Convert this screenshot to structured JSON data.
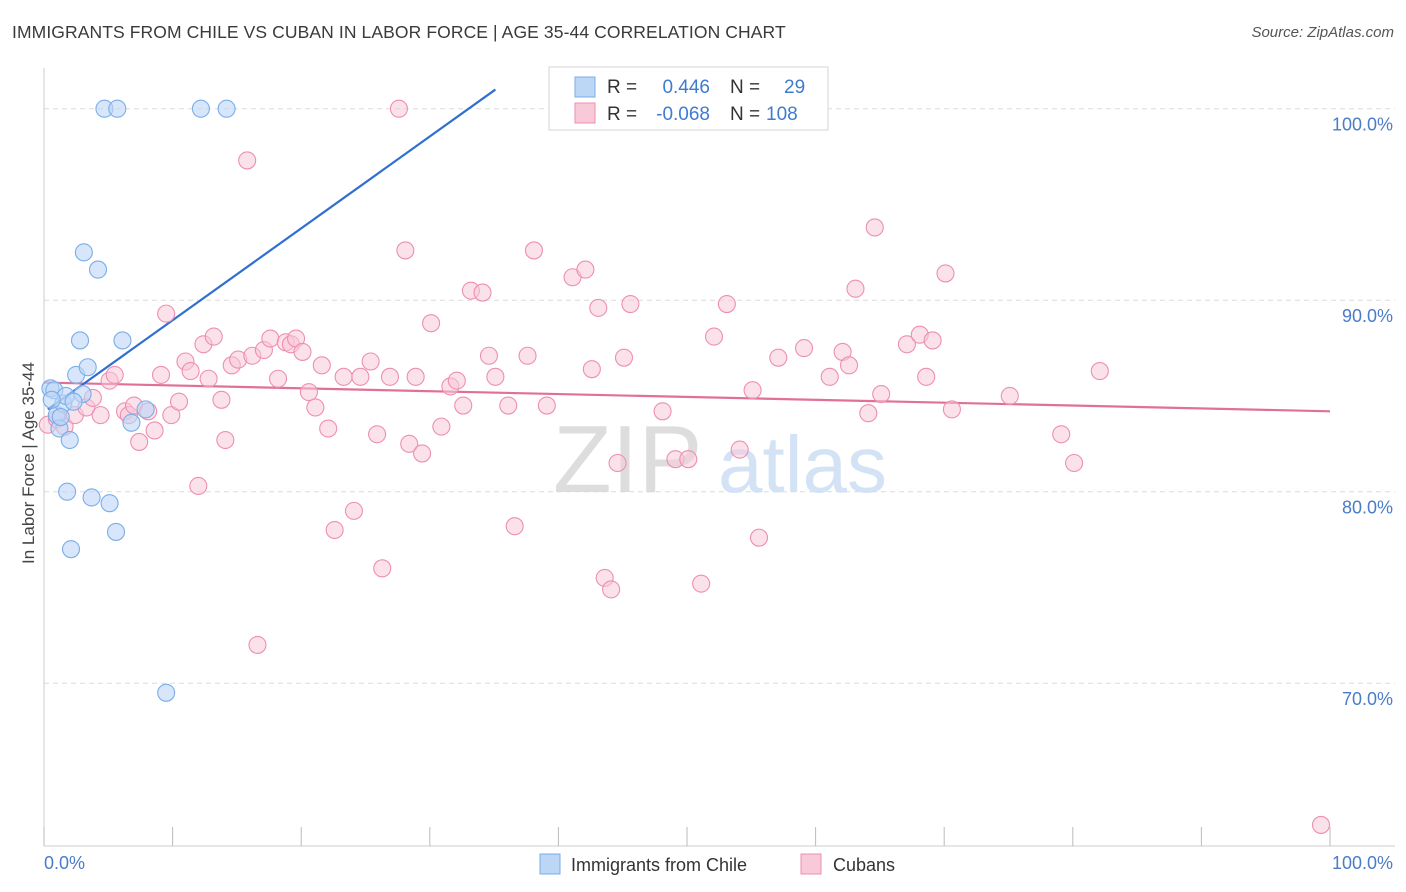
{
  "header": {
    "title": "IMMIGRANTS FROM CHILE VS CUBAN IN LABOR FORCE | AGE 35-44 CORRELATION CHART",
    "source": "Source: ZipAtlas.com"
  },
  "watermark": {
    "zip": "ZIP",
    "atlas": "atlas"
  },
  "colors": {
    "blue": "#7aaee8",
    "blue_fill": "#bcd6f6",
    "blue_line": "#2f6fcf",
    "pink": "#ee8fb0",
    "pink_fill": "#f8c9d8",
    "pink_line": "#e0709a",
    "tick_label": "#4a7cc9",
    "grid": "#dcdcdc"
  },
  "legend_top": {
    "rows": [
      {
        "r_label": "R = ",
        "r_value": "0.446",
        "n_label": "N = ",
        "n_value": "29"
      },
      {
        "r_label": "R = ",
        "r_value": "-0.068",
        "n_label": "N = ",
        "n_value": "108"
      }
    ]
  },
  "chart_data": {
    "type": "scatter",
    "title": "IMMIGRANTS FROM CHILE VS CUBAN IN LABOR FORCE | AGE 35-44 CORRELATION CHART",
    "xlabel": "",
    "ylabel": "In Labor Force | Age 35-44",
    "xlim": [
      0,
      100
    ],
    "ylim": [
      61.5,
      101.5
    ],
    "x_tick_labels": [
      "0.0%",
      "100.0%"
    ],
    "y_ticks": [
      70,
      80,
      90,
      100
    ],
    "y_tick_labels": [
      "70.0%",
      "80.0%",
      "90.0%",
      "100.0%"
    ],
    "grid": true,
    "legend_position": "bottom-center",
    "series": [
      {
        "name": "Immigrants from Chile",
        "color": "#7aaee8",
        "trend": {
          "x": [
            0.3,
            35.1
          ],
          "y": [
            84.3,
            101.0
          ]
        },
        "points": [
          [
            0.5,
            85.4
          ],
          [
            0.8,
            85.3
          ],
          [
            1.0,
            84.0
          ],
          [
            1.2,
            83.3
          ],
          [
            1.5,
            84.6
          ],
          [
            1.7,
            85.0
          ],
          [
            2.0,
            82.7
          ],
          [
            1.8,
            80.0
          ],
          [
            2.1,
            77.0
          ],
          [
            3.0,
            85.1
          ],
          [
            2.5,
            86.1
          ],
          [
            2.8,
            87.9
          ],
          [
            3.1,
            92.5
          ],
          [
            3.4,
            86.5
          ],
          [
            3.7,
            79.7
          ],
          [
            4.2,
            91.6
          ],
          [
            5.1,
            79.4
          ],
          [
            5.6,
            77.9
          ],
          [
            6.1,
            87.9
          ],
          [
            6.8,
            83.6
          ],
          [
            7.9,
            84.3
          ],
          [
            9.5,
            69.5
          ],
          [
            4.7,
            100.0
          ],
          [
            5.7,
            100.0
          ],
          [
            12.2,
            100.0
          ],
          [
            14.2,
            100.0
          ],
          [
            0.6,
            84.8
          ],
          [
            1.3,
            83.9
          ],
          [
            2.3,
            84.7
          ]
        ]
      },
      {
        "name": "Cubans",
        "color": "#ee8fb0",
        "trend": {
          "x": [
            0.0,
            100.0
          ],
          "y": [
            85.7,
            84.2
          ]
        },
        "points": [
          [
            0.3,
            83.5
          ],
          [
            1.0,
            83.8
          ],
          [
            1.6,
            83.4
          ],
          [
            2.4,
            84.0
          ],
          [
            3.3,
            84.4
          ],
          [
            3.8,
            84.9
          ],
          [
            4.4,
            84.0
          ],
          [
            5.1,
            85.8
          ],
          [
            5.5,
            86.1
          ],
          [
            6.3,
            84.2
          ],
          [
            6.6,
            84.0
          ],
          [
            7.0,
            84.5
          ],
          [
            7.4,
            82.6
          ],
          [
            8.1,
            84.2
          ],
          [
            8.6,
            83.2
          ],
          [
            9.1,
            86.1
          ],
          [
            9.5,
            89.3
          ],
          [
            9.9,
            84.0
          ],
          [
            10.5,
            84.7
          ],
          [
            11.0,
            86.8
          ],
          [
            11.4,
            86.3
          ],
          [
            12.0,
            80.3
          ],
          [
            12.4,
            87.7
          ],
          [
            12.8,
            85.9
          ],
          [
            13.2,
            88.1
          ],
          [
            13.8,
            84.8
          ],
          [
            14.1,
            82.7
          ],
          [
            14.6,
            86.6
          ],
          [
            15.1,
            86.9
          ],
          [
            15.8,
            97.3
          ],
          [
            16.2,
            87.1
          ],
          [
            16.6,
            72.0
          ],
          [
            17.1,
            87.4
          ],
          [
            17.6,
            88.0
          ],
          [
            18.2,
            85.9
          ],
          [
            18.8,
            87.8
          ],
          [
            19.2,
            87.7
          ],
          [
            19.6,
            88.0
          ],
          [
            20.1,
            87.3
          ],
          [
            20.6,
            85.2
          ],
          [
            21.1,
            84.4
          ],
          [
            21.6,
            86.6
          ],
          [
            22.1,
            83.3
          ],
          [
            22.6,
            78.0
          ],
          [
            23.3,
            86.0
          ],
          [
            24.1,
            79.0
          ],
          [
            24.6,
            86.0
          ],
          [
            25.4,
            86.8
          ],
          [
            25.9,
            83.0
          ],
          [
            26.3,
            76.0
          ],
          [
            26.9,
            86.0
          ],
          [
            27.6,
            100.0
          ],
          [
            28.1,
            92.6
          ],
          [
            28.4,
            82.5
          ],
          [
            28.9,
            86.0
          ],
          [
            29.4,
            82.0
          ],
          [
            30.1,
            88.8
          ],
          [
            30.9,
            83.4
          ],
          [
            31.6,
            85.5
          ],
          [
            32.1,
            85.8
          ],
          [
            32.6,
            84.5
          ],
          [
            33.2,
            90.5
          ],
          [
            34.1,
            90.4
          ],
          [
            34.6,
            87.1
          ],
          [
            35.1,
            86.0
          ],
          [
            36.1,
            84.5
          ],
          [
            36.6,
            78.2
          ],
          [
            37.6,
            87.1
          ],
          [
            38.1,
            92.6
          ],
          [
            39.1,
            84.5
          ],
          [
            41.1,
            91.2
          ],
          [
            42.1,
            91.6
          ],
          [
            42.6,
            86.4
          ],
          [
            43.1,
            89.6
          ],
          [
            43.6,
            75.5
          ],
          [
            44.1,
            74.9
          ],
          [
            44.6,
            81.5
          ],
          [
            45.1,
            87.0
          ],
          [
            45.6,
            89.8
          ],
          [
            48.1,
            84.2
          ],
          [
            49.1,
            81.7
          ],
          [
            50.1,
            81.7
          ],
          [
            51.1,
            75.2
          ],
          [
            52.1,
            88.1
          ],
          [
            53.1,
            89.8
          ],
          [
            54.1,
            82.2
          ],
          [
            55.1,
            85.3
          ],
          [
            55.6,
            77.6
          ],
          [
            57.1,
            87.0
          ],
          [
            59.1,
            87.5
          ],
          [
            61.1,
            86.0
          ],
          [
            62.1,
            87.3
          ],
          [
            62.6,
            86.6
          ],
          [
            63.1,
            90.6
          ],
          [
            64.1,
            84.1
          ],
          [
            64.6,
            93.8
          ],
          [
            65.1,
            85.1
          ],
          [
            67.1,
            87.7
          ],
          [
            68.1,
            88.2
          ],
          [
            68.6,
            86.0
          ],
          [
            69.1,
            87.9
          ],
          [
            70.1,
            91.4
          ],
          [
            70.6,
            84.3
          ],
          [
            75.1,
            85.0
          ],
          [
            79.1,
            83.0
          ],
          [
            80.1,
            81.5
          ],
          [
            82.1,
            86.3
          ],
          [
            99.3,
            62.6
          ]
        ]
      }
    ]
  }
}
